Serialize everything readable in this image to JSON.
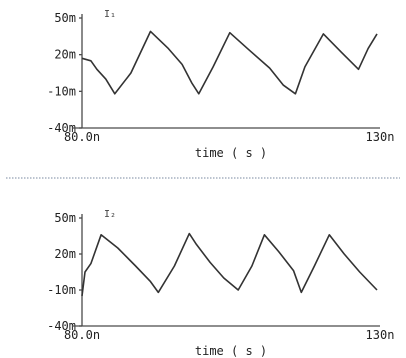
{
  "colors": {
    "trace": "#333333",
    "axis": "#4a4a4a",
    "separator": "#7a8aa0"
  },
  "chart_data": [
    {
      "type": "line",
      "trace_label": "I₁",
      "xlabel": "time ( s )",
      "xlim": [
        80,
        130
      ],
      "x_tick_labels": [
        "80.0n",
        "130n"
      ],
      "ylim": [
        -40,
        50
      ],
      "y_tick_values": [
        50,
        20,
        -10,
        -40
      ],
      "y_tick_labels": [
        "50m",
        "20m",
        "-10m",
        "-40m"
      ],
      "series": [
        {
          "x": [
            80,
            81.5,
            82.5,
            84,
            85.5,
            88.2,
            91.5,
            94.5,
            96.8,
            98.4,
            99.6,
            102,
            104.8,
            108,
            111.5,
            113.8,
            115.8,
            117.4,
            120.5,
            123.5,
            126.4,
            128,
            129.5
          ],
          "y": [
            17,
            15,
            8,
            0,
            -12,
            5,
            39,
            25,
            12,
            -3,
            -12,
            10,
            38,
            24,
            9,
            -5,
            -12,
            10,
            37,
            22,
            8,
            25,
            37
          ]
        }
      ]
    },
    {
      "type": "line",
      "trace_label": "I₂",
      "xlabel": "time ( s )",
      "xlim": [
        80,
        130
      ],
      "x_tick_labels": [
        "80.0n",
        "130n"
      ],
      "ylim": [
        -40,
        50
      ],
      "y_tick_values": [
        50,
        20,
        -10,
        -40
      ],
      "y_tick_labels": [
        "50m",
        "20m",
        "-10m",
        "-40m"
      ],
      "series": [
        {
          "x": [
            80,
            80.5,
            81.5,
            83.2,
            86,
            89,
            91.5,
            92.8,
            95.5,
            98,
            99.2,
            101.5,
            103.8,
            106.2,
            108.5,
            110.6,
            113,
            115.5,
            116.8,
            119,
            121.5,
            124,
            126.6,
            129.5
          ],
          "y": [
            -15,
            5,
            12,
            36,
            25,
            10,
            -3,
            -12,
            10,
            37,
            28,
            13,
            0,
            -10,
            10,
            36,
            22,
            6,
            -12,
            10,
            36,
            20,
            5,
            -10
          ]
        }
      ]
    }
  ]
}
